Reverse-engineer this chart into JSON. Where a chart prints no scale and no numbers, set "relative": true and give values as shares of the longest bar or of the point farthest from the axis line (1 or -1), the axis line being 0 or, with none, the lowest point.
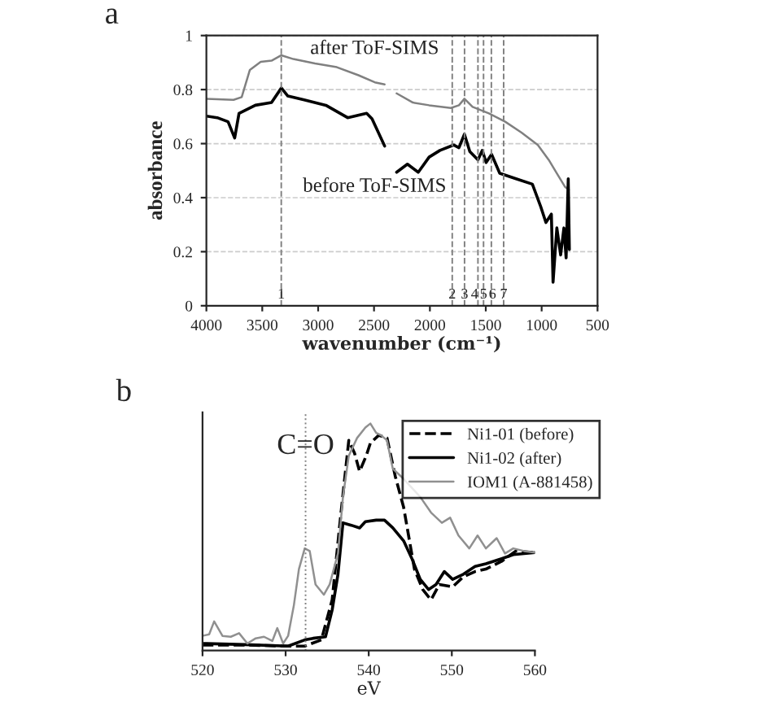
{
  "chart_data": [
    {
      "type": "line",
      "xlabel": "wavenumber (cm⁻¹)",
      "ylabel": "absorbance",
      "xlim": [
        4000,
        500
      ],
      "xticks": [
        4000,
        3500,
        3000,
        2500,
        2000,
        1500,
        1000,
        500
      ],
      "ylim": [
        0,
        1
      ],
      "yticks": [
        0,
        0.2,
        0.4,
        0.6,
        0.8,
        1
      ],
      "grid": "y",
      "legend": false,
      "series": [
        {
          "name": "after ToF-SIMS",
          "color": "#808080",
          "x": [
            4000,
            3757,
            3684,
            3611,
            3514,
            3417,
            3329,
            3222,
            3028,
            2833,
            2639,
            2493,
            2405,
            2350,
            2298,
            2152,
            2007,
            1812,
            1740,
            1691,
            1618,
            1472,
            1326,
            1180,
            1034,
            937,
            864,
            791,
            757
          ],
          "values": [
            0.766,
            0.762,
            0.772,
            0.873,
            0.903,
            0.907,
            0.927,
            0.913,
            0.897,
            0.883,
            0.853,
            0.827,
            0.819,
            null,
            0.786,
            0.752,
            0.742,
            0.732,
            0.742,
            0.766,
            0.736,
            0.712,
            0.681,
            0.641,
            0.595,
            0.54,
            0.49,
            0.44,
            0.429
          ]
        },
        {
          "name": "before ToF-SIMS",
          "color": "#000000",
          "x": [
            4000,
            3903,
            3806,
            3747,
            3708,
            3562,
            3417,
            3329,
            3271,
            3125,
            2931,
            2736,
            2566,
            2518,
            2405,
            2350,
            2298,
            2201,
            2104,
            2007,
            1910,
            1788,
            1740,
            1691,
            1643,
            1570,
            1531,
            1497,
            1448,
            1375,
            1229,
            1083,
            1010,
            962,
            913,
            898,
            864,
            830,
            801,
            781,
            762,
            752
          ],
          "values": [
            0.702,
            0.696,
            0.681,
            0.621,
            0.712,
            0.742,
            0.752,
            0.806,
            0.776,
            0.762,
            0.742,
            0.696,
            0.712,
            0.692,
            0.591,
            null,
            0.494,
            0.524,
            0.494,
            0.55,
            0.575,
            0.595,
            0.585,
            0.635,
            0.571,
            0.54,
            0.575,
            0.53,
            0.56,
            0.49,
            0.47,
            0.45,
            0.369,
            0.308,
            0.339,
            0.087,
            0.288,
            0.188,
            0.288,
            0.177,
            0.47,
            0.208
          ]
        }
      ],
      "ref_lines": [
        {
          "axis": "x",
          "value": 3330,
          "line_style": "dashed",
          "color": "#808080"
        },
        {
          "axis": "x",
          "value": 1800,
          "line_style": "dashed",
          "color": "#808080"
        },
        {
          "axis": "x",
          "value": 1690,
          "line_style": "dashed",
          "color": "#808080"
        },
        {
          "axis": "x",
          "value": 1570,
          "line_style": "dashed",
          "color": "#808080"
        },
        {
          "axis": "x",
          "value": 1520,
          "line_style": "dashed",
          "color": "#808080"
        },
        {
          "axis": "x",
          "value": 1450,
          "line_style": "dashed",
          "color": "#808080"
        },
        {
          "axis": "x",
          "value": 1340,
          "line_style": "dashed",
          "color": "#808080"
        }
      ],
      "annotations": [
        "a",
        {
          "text": "1",
          "x": 3330,
          "y": 0.04
        },
        {
          "text": "2",
          "x": 1800,
          "y": 0.04
        },
        {
          "text": "3",
          "x": 1690,
          "y": 0.04
        },
        {
          "text": "4",
          "x": 1600,
          "y": 0.04
        },
        {
          "text": "5",
          "x": 1520,
          "y": 0.04
        },
        {
          "text": "6",
          "x": 1440,
          "y": 0.04
        },
        {
          "text": "7",
          "x": 1340,
          "y": 0.04
        }
      ]
    },
    {
      "type": "line",
      "xlabel": "eV",
      "xlim": [
        520,
        560
      ],
      "xticks": [
        520,
        530,
        540,
        550,
        560
      ],
      "relative": true,
      "legend": "top right",
      "series": [
        {
          "name": "Ni1-01 (before)",
          "color": "#000000",
          "line_style": "dashed",
          "x": [
            520,
            525.1,
            530.3,
            532.3,
            534.3,
            535.6,
            536.6,
            537.6,
            538.3,
            538.9,
            539.7,
            540.2,
            541.2,
            542.2,
            543.2,
            544.2,
            545.5,
            546.5,
            547.5,
            548.5,
            550.1,
            551.4,
            552.8,
            554.1,
            556.0,
            557.7,
            560
          ],
          "values": [
            0.005,
            0.005,
            0,
            0,
            0.028,
            0.208,
            0.577,
            0.924,
            0.866,
            0.785,
            0.855,
            0.912,
            0.947,
            0.935,
            0.762,
            0.624,
            0.346,
            0.254,
            0.208,
            0.277,
            0.266,
            0.312,
            0.335,
            0.346,
            0.381,
            0.427,
            0.42
          ]
        },
        {
          "name": "Ni1-02 (after)",
          "color": "#000000",
          "line_style": "solid",
          "x": [
            520,
            525.1,
            530.3,
            532.3,
            533.3,
            534.8,
            535.6,
            536.3,
            536.9,
            537.9,
            538.9,
            539.6,
            540.9,
            541.9,
            542.9,
            544.2,
            545.2,
            546.2,
            547.2,
            548.1,
            549.1,
            550.1,
            551.4,
            552.8,
            554.1,
            556.0,
            557.4,
            560
          ],
          "values": [
            0.012,
            0.007,
            0,
            0.028,
            0.035,
            0.042,
            0.162,
            0.323,
            0.554,
            0.543,
            0.531,
            0.559,
            0.566,
            0.566,
            0.531,
            0.473,
            0.393,
            0.3,
            0.254,
            0.277,
            0.335,
            0.3,
            0.323,
            0.358,
            0.37,
            0.393,
            0.411,
            0.42
          ]
        },
        {
          "name": "IOM1 (A-881458)",
          "color": "#909090",
          "line_style": "solid",
          "x": [
            520,
            520.8,
            521.4,
            522.4,
            523.4,
            524.4,
            525.4,
            526.4,
            527.4,
            528.4,
            529.0,
            529.7,
            530.3,
            531.0,
            531.6,
            532.3,
            532.9,
            533.6,
            534.6,
            535.3,
            536.3,
            536.9,
            537.6,
            538.6,
            539.6,
            540.2,
            540.9,
            541.5,
            542.2,
            542.9,
            543.9,
            544.8,
            546.2,
            547.5,
            548.8,
            549.8,
            550.8,
            552.1,
            553.1,
            554.1,
            555.4,
            556.4,
            557.4,
            558.7,
            560
          ],
          "values": [
            0.046,
            0.053,
            0.111,
            0.046,
            0.042,
            0.058,
            0.012,
            0.035,
            0.042,
            0.023,
            0.081,
            0.012,
            0.046,
            0.185,
            0.346,
            0.439,
            0.427,
            0.277,
            0.231,
            0.277,
            0.416,
            0.67,
            0.855,
            0.935,
            0.982,
            1.0,
            0.958,
            0.947,
            0.924,
            0.797,
            0.762,
            0.727,
            0.67,
            0.6,
            0.554,
            0.577,
            0.497,
            0.439,
            0.497,
            0.439,
            0.485,
            0.416,
            0.439,
            0.427,
            0.42
          ]
        }
      ],
      "ref_lines": [
        {
          "axis": "x",
          "value": 532.4,
          "label": "C=O",
          "line_style": "dotted",
          "color": "#808080"
        }
      ],
      "annotations": [
        "b"
      ]
    }
  ]
}
